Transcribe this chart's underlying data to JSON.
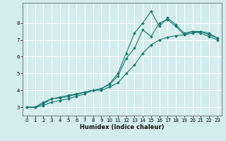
{
  "xlabel": "Humidex (Indice chaleur)",
  "bg_color": "#d4ecee",
  "grid_color": "#ffffff",
  "line_color": "#1a7a6e",
  "marker_style": "D",
  "marker_size": 2.0,
  "xlim": [
    -0.5,
    23.5
  ],
  "ylim": [
    2.5,
    9.2
  ],
  "xticks": [
    0,
    1,
    2,
    3,
    4,
    5,
    6,
    7,
    8,
    9,
    10,
    11,
    12,
    13,
    14,
    15,
    16,
    17,
    18,
    19,
    20,
    21,
    22,
    23
  ],
  "yticks": [
    3,
    4,
    5,
    6,
    7,
    8
  ],
  "series": [
    {
      "x": [
        0,
        1,
        2,
        3,
        4,
        5,
        6,
        7,
        8,
        9,
        10,
        11,
        12,
        13,
        14,
        15,
        16,
        17,
        18,
        19,
        20,
        21,
        22,
        23
      ],
      "y": [
        3.0,
        3.0,
        3.2,
        3.5,
        3.6,
        3.7,
        3.8,
        3.9,
        4.0,
        4.1,
        4.4,
        5.0,
        6.2,
        7.4,
        8.0,
        8.7,
        7.8,
        8.3,
        7.9,
        7.4,
        7.5,
        7.5,
        7.3,
        7.1
      ]
    },
    {
      "x": [
        0,
        1,
        2,
        3,
        4,
        5,
        6,
        7,
        8,
        9,
        10,
        11,
        12,
        13,
        14,
        15,
        16,
        17,
        18,
        19,
        20,
        21,
        22,
        23
      ],
      "y": [
        3.0,
        3.0,
        3.3,
        3.5,
        3.55,
        3.65,
        3.75,
        3.9,
        4.0,
        4.1,
        4.35,
        4.85,
        5.9,
        6.5,
        7.6,
        7.2,
        8.0,
        8.2,
        7.8,
        7.3,
        7.5,
        7.4,
        7.2,
        7.0
      ]
    },
    {
      "x": [
        0,
        1,
        2,
        3,
        4,
        5,
        6,
        7,
        8,
        9,
        10,
        11,
        12,
        13,
        14,
        15,
        16,
        17,
        18,
        19,
        20,
        21,
        22,
        23
      ],
      "y": [
        3.0,
        3.0,
        3.1,
        3.3,
        3.4,
        3.5,
        3.65,
        3.8,
        4.0,
        4.0,
        4.2,
        4.45,
        5.0,
        5.5,
        6.2,
        6.7,
        7.0,
        7.15,
        7.25,
        7.3,
        7.4,
        7.5,
        7.4,
        7.1
      ]
    }
  ]
}
